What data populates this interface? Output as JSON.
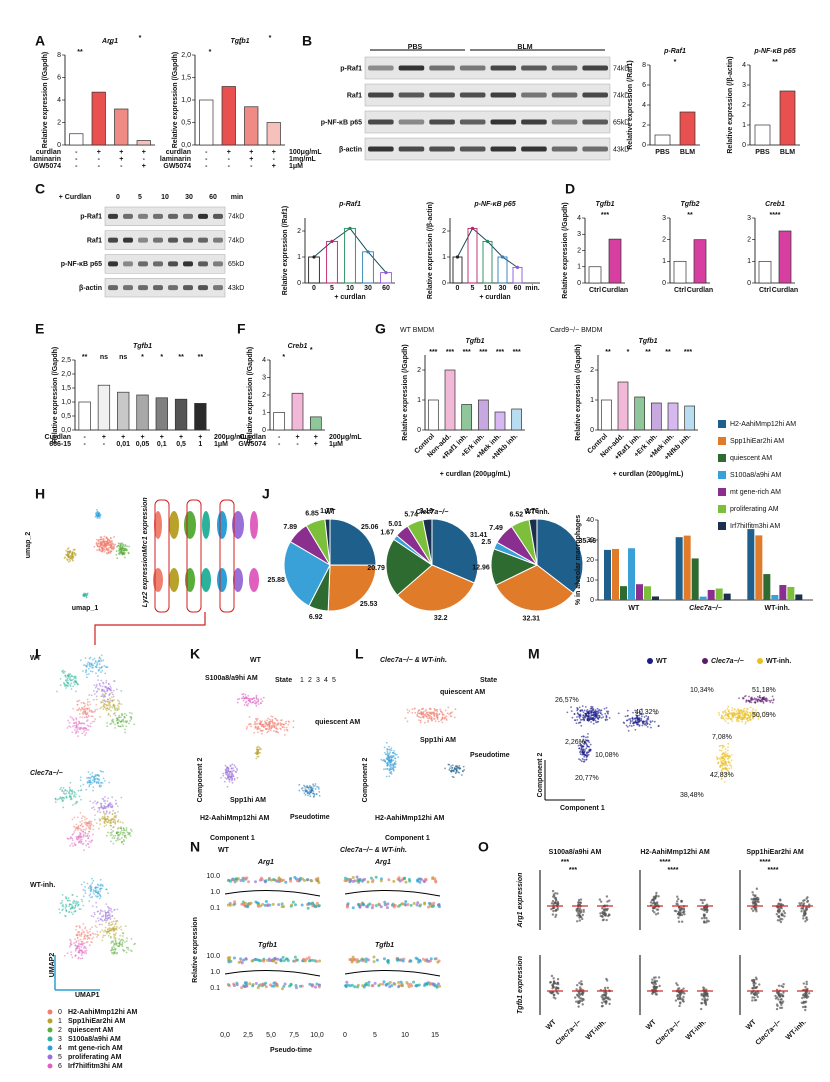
{
  "clusters": [
    {
      "name": "H2-AahiMmp12hi AM",
      "color": "#1f5f8b"
    },
    {
      "name": "Spp1hiEar2hi AM",
      "color": "#e07b2a"
    },
    {
      "name": "quiescent AM",
      "color": "#2e6b30"
    },
    {
      "name": "S100a8/a9hi AM",
      "color": "#3aa0d8"
    },
    {
      "name": "mt gene-rich AM",
      "color": "#8a2f8f"
    },
    {
      "name": "proliferating AM",
      "color": "#7bbf3a"
    },
    {
      "name": "Irf7hiIfitm3hi AM",
      "color": "#1b2f4f"
    }
  ],
  "panels": [
    {
      "label": "A",
      "charts": [
        {
          "type": "bar",
          "title": "Arg1",
          "ylabel": "Relative expression (/Gapdh)",
          "values": [
            1,
            4.7,
            3.2,
            0.4
          ],
          "colors": [
            "#ffffff",
            "#e8514f",
            "#f08a84",
            "#f6c1bd"
          ],
          "ylim": [
            0,
            8
          ],
          "yticks": [
            0,
            2,
            4,
            6,
            8
          ],
          "rows": [
            {
              "name": "curdlan",
              "marks": [
                "-",
                "+",
                "+",
                "+"
              ]
            },
            {
              "name": "laminarin",
              "marks": [
                "-",
                "-",
                "+",
                "-"
              ]
            },
            {
              "name": "GW5074",
              "marks": [
                "-",
                "-",
                "-",
                "+"
              ]
            }
          ],
          "sig": [
            "**",
            "*",
            "*"
          ]
        },
        {
          "type": "bar",
          "title": "Tgfb1",
          "ylabel": "Relative expression (/Gapdh)",
          "values": [
            1,
            1.3,
            0.85,
            0.5
          ],
          "colors": [
            "#ffffff",
            "#e8514f",
            "#f08a84",
            "#f6c1bd"
          ],
          "ylim": [
            0,
            2
          ],
          "yticks": [
            {
              "value": 0,
              "label": "0,0"
            },
            {
              "value": 0.5,
              "label": "0,5"
            },
            {
              "value": 1,
              "label": "1,0"
            },
            {
              "value": 1.5,
              "label": "1,5"
            },
            {
              "value": 2,
              "label": "2,0"
            }
          ],
          "rows": [
            {
              "name": "curdlan",
              "marks": [
                "-",
                "+",
                "+",
                "+"
              ]
            },
            {
              "name": "laminarin",
              "marks": [
                "-",
                "-",
                "+",
                "-"
              ]
            },
            {
              "name": "GW5074",
              "marks": [
                "-",
                "-",
                "-",
                "+"
              ]
            }
          ],
          "doses": [
            "100μg/mL",
            "1mg/mL",
            "1μM"
          ],
          "sig": [
            "*",
            "*",
            "*"
          ]
        }
      ]
    },
    {
      "label": "B",
      "blot": {
        "groups": [
          "PBS",
          "BLM"
        ],
        "rows": [
          "p-Raf1",
          "Raf1",
          "p-NF-κB p65",
          "β-actin"
        ],
        "sizes": [
          "74kD",
          "74kD",
          "65kD",
          "43kD"
        ]
      },
      "charts": [
        {
          "type": "bar",
          "title": "p-Raf1",
          "ylabel": "Relative expression (/Raf1)",
          "categories": [
            "PBS",
            "BLM"
          ],
          "values": [
            1,
            3.3
          ],
          "colors": [
            "#ffffff",
            "#e8514f"
          ],
          "ylim": [
            0,
            8
          ],
          "yticks": [
            0,
            2,
            4,
            6,
            8
          ],
          "sig": [
            "*"
          ]
        },
        {
          "type": "bar",
          "title": "p-NF-κB p65",
          "ylabel": "Relative expression (/β-actin)",
          "categories": [
            "PBS",
            "BLM"
          ],
          "values": [
            1,
            2.7
          ],
          "colors": [
            "#ffffff",
            "#e8514f"
          ],
          "ylim": [
            0,
            4
          ],
          "yticks": [
            0,
            1,
            2,
            3,
            4
          ],
          "sig": [
            "**"
          ]
        }
      ]
    },
    {
      "label": "C",
      "blot": {
        "groups": [
          "+ Curdlan",
          "0",
          "5",
          "10",
          "30",
          "60",
          "min"
        ],
        "rows": [
          "p-Raf1",
          "Raf1",
          "p-NF-κB p65",
          "β-actin"
        ],
        "sizes": [
          "74kD",
          "74kD",
          "65kD",
          "43kD"
        ]
      },
      "charts": [
        {
          "type": "line",
          "title": "p-Raf1",
          "ylabel": "Relative expression (/Raf1)",
          "xlabel": "+ curdlan",
          "categories": [
            "0",
            "5",
            "10",
            "30",
            "60"
          ],
          "values": [
            1,
            1.6,
            2.1,
            1.2,
            0.4
          ],
          "colors": [
            "#222222",
            "#c0206a",
            "#1f8a5a",
            "#2a7fb8",
            "#8a5ad8"
          ],
          "ylim": [
            0,
            2.5
          ],
          "yticks": [
            0,
            1,
            2
          ]
        },
        {
          "type": "line",
          "title": "p-NF-κB p65",
          "ylabel": "Relative expression (/β-actin)",
          "xlabel": "+ curdlan",
          "categories": [
            "0",
            "5",
            "10",
            "30",
            "60",
            "min."
          ],
          "values": [
            1,
            2.1,
            1.6,
            1.0,
            0.6,
            null
          ],
          "colors": [
            "#222222",
            "#c0206a",
            "#1f8a5a",
            "#2a7fb8",
            "#8a5ad8",
            "#8a5ad8"
          ],
          "ylim": [
            0,
            2.5
          ],
          "yticks": [
            0,
            1,
            2
          ]
        }
      ]
    },
    {
      "label": "D",
      "charts": [
        {
          "type": "bar",
          "title": "Tgfb1",
          "ylabel": "Relative expression (/Gapdh)",
          "categories": [
            "Ctrl",
            "Curdlan"
          ],
          "values": [
            1,
            2.7
          ],
          "colors": [
            "#ffffff",
            "#d63fa0"
          ],
          "ylim": [
            0,
            4
          ],
          "yticks": [
            0,
            1,
            2,
            3,
            4
          ],
          "sig": [
            "***"
          ]
        },
        {
          "type": "bar",
          "title": "Tgfb2",
          "categories": [
            "Ctrl",
            "Curdlan"
          ],
          "values": [
            1,
            2.0
          ],
          "colors": [
            "#ffffff",
            "#d63fa0"
          ],
          "ylim": [
            0,
            3
          ],
          "yticks": [
            0,
            1,
            2,
            3
          ],
          "sig": [
            "**"
          ]
        },
        {
          "type": "bar",
          "title": "Creb1",
          "categories": [
            "Ctrl",
            "Curdlan"
          ],
          "values": [
            1,
            2.4
          ],
          "colors": [
            "#ffffff",
            "#d63fa0"
          ],
          "ylim": [
            0,
            3
          ],
          "yticks": [
            0,
            1,
            2,
            3
          ],
          "sig": [
            "****"
          ]
        }
      ]
    },
    {
      "label": "E",
      "charts": [
        {
          "type": "bar",
          "title": "Tgfb1",
          "ylabel": "Relative expression (/Gapdh)",
          "values": [
            1,
            1.6,
            1.35,
            1.25,
            1.15,
            1.1,
            0.95
          ],
          "colors": [
            "#ffffff",
            "#f0f0f0",
            "#c8c8c8",
            "#a8a8a8",
            "#808080",
            "#555555",
            "#2a2a2a"
          ],
          "ylim": [
            0,
            2.5
          ],
          "yticks": [
            {
              "value": 0,
              "label": "0,0"
            },
            {
              "value": 0.5,
              "label": "0,5"
            },
            {
              "value": 1,
              "label": "1,0"
            },
            {
              "value": 1.5,
              "label": "1,5"
            },
            {
              "value": 2,
              "label": "2,0"
            },
            {
              "value": 2.5,
              "label": "2,5"
            }
          ],
          "rows": [
            {
              "name": "Curdlan",
              "marks": [
                "-",
                "+",
                "+",
                "+",
                "+",
                "+",
                "+"
              ]
            },
            {
              "name": "666-15",
              "marks": [
                "-",
                "-",
                "0,01",
                "0,05",
                "0,1",
                "0,5",
                "1"
              ]
            }
          ],
          "doses": [
            "200μg/mL",
            "1μM"
          ],
          "sig": [
            "**",
            "ns",
            "ns",
            "*",
            "*",
            "**",
            "**"
          ]
        }
      ]
    },
    {
      "label": "F",
      "charts": [
        {
          "type": "bar",
          "title": "Creb1",
          "ylabel": "Relative expression (/Gapdh)",
          "values": [
            1,
            2.1,
            0.75
          ],
          "colors": [
            "#ffffff",
            "#f2b8d8",
            "#8fc79a"
          ],
          "ylim": [
            0,
            4
          ],
          "yticks": [
            0,
            1,
            2,
            3,
            4
          ],
          "rows": [
            {
              "name": "Curdlan",
              "marks": [
                "-",
                "+",
                "+"
              ]
            },
            {
              "name": "GW5074",
              "marks": [
                "-",
                "-",
                "+"
              ]
            }
          ],
          "doses": [
            "200μg/mL",
            "1μM"
          ],
          "sig": [
            "*",
            "*"
          ]
        }
      ]
    },
    {
      "label": "G",
      "headers": [
        "WT BMDM",
        "Card9−/− BMDM"
      ],
      "charts": [
        {
          "type": "bar",
          "title": "Tgfb1",
          "ylabel": "Relative expression (/Gapdh)",
          "xlabel": "+ curdlan (200μg/mL)",
          "categories": [
            "Control",
            "Non-add.",
            "+Raf1 inh.",
            "+Erk inh.",
            "+Mek inh.",
            "+Nfkb inh."
          ],
          "values": [
            1,
            2,
            0.85,
            1,
            0.6,
            0.7
          ],
          "colors": [
            "#ffffff",
            "#f2b8d8",
            "#8fc79a",
            "#c7a8e0",
            "#d8b8f0",
            "#b8dcf0"
          ],
          "ylim": [
            0,
            2.5
          ],
          "yticks": [
            0,
            1,
            2
          ],
          "sig": [
            "***",
            "***",
            "***",
            "***",
            "***",
            "***"
          ]
        },
        {
          "type": "bar",
          "title": "Tgfb1",
          "ylabel": "Relative expression (/Gapdh)",
          "xlabel": "+ curdlan (200μg/mL)",
          "categories": [
            "Control",
            "Non-add.",
            "+Raf1 inh.",
            "+Erk inh.",
            "+Mek inh.",
            "+Nfkb inh."
          ],
          "values": [
            1,
            1.6,
            1.1,
            0.9,
            0.9,
            0.8
          ],
          "colors": [
            "#ffffff",
            "#f2b8d8",
            "#8fc79a",
            "#c7a8e0",
            "#d8b8f0",
            "#b8dcf0"
          ],
          "ylim": [
            0,
            2.5
          ],
          "yticks": [
            0,
            1,
            2
          ],
          "sig": [
            "**",
            "*",
            "**",
            "**",
            "***"
          ]
        }
      ]
    },
    {
      "label": "H",
      "texts": [
        "umap_1",
        "umap_2",
        "Mrc1 expression",
        "Lyz2 expression"
      ]
    },
    {
      "label": "J",
      "pies": [
        {
          "title": "WT",
          "values": [
            25.06,
            25.53,
            6.92,
            25.88,
            7.89,
            6.85,
            1.77
          ]
        },
        {
          "title": "Clec7a−/−",
          "values": [
            31.41,
            32.2,
            20.79,
            1.67,
            5.01,
            5.74,
            3.19
          ]
        },
        {
          "title": "WT-inh.",
          "values": [
            35.46,
            32.31,
            12.96,
            2.5,
            7.49,
            6.52,
            2.76
          ]
        }
      ],
      "bar": {
        "ylabel": "% in alveolar macrophages",
        "ylim": [
          0,
          40
        ],
        "yticks": [
          0,
          10,
          20,
          30,
          40
        ]
      }
    },
    {
      "label": "I",
      "texts": [
        "WT",
        "Clec7a−/−",
        "WT-inh.",
        "UMAP1",
        "UMAP2"
      ],
      "ids": [
        "0",
        "1",
        "2",
        "3",
        "4",
        "5",
        "6"
      ],
      "umap_colors": [
        "#f07f6f",
        "#b8a22a",
        "#5aad3a",
        "#2ab39a",
        "#2a9fd8",
        "#9b6fd8",
        "#e060c0"
      ]
    },
    {
      "label": "K",
      "texts": [
        "WT",
        "S100a8/a9hi AM",
        "State",
        "quiescent AM",
        "Spp1hi AM",
        "H2-AahiMmp12hi AM",
        "Pseudotime",
        "Component 1",
        "Component 2"
      ],
      "states": [
        "1",
        "2",
        "3",
        "4",
        "5"
      ]
    },
    {
      "label": "L",
      "texts": [
        "Clec7a−/− & WT-inh.",
        "quiescent AM",
        "Spp1hi AM",
        "H2-AahiMmp12hi AM",
        "Pseudotime",
        "State",
        "Component 1",
        "Component 2"
      ]
    },
    {
      "label": "M",
      "legend": [
        "WT",
        "Clec7a−/−",
        "WT-inh."
      ],
      "wt": [
        "26,57%",
        "40,32%",
        "2,26%",
        "10,08%",
        "20,77%"
      ],
      "inh": [
        "10,34%",
        "51,18%",
        "7,08%",
        "50,09%",
        "42,83%",
        "38,48%"
      ],
      "axes": [
        "Component 1",
        "Component 2"
      ]
    },
    {
      "label": "N",
      "texts": [
        "WT",
        "Clec7a−/− & WT-inh.",
        "Arg1",
        "Arg1",
        "Tgfb1",
        "Tgfb1",
        "Relative expression",
        "Pseudo-time"
      ],
      "yticks": [
        "10.0",
        "1.0",
        "0.1"
      ],
      "xticks_wt": [
        "0,0",
        "2,5",
        "5,0",
        "7,5",
        "10,0"
      ],
      "xticks_ko": [
        "0",
        "5",
        "10",
        "15"
      ]
    },
    {
      "label": "O",
      "titles": [
        "S100a8/a9hi AM",
        "H2-AahiMmp12hi AM",
        "Spp1hiEar2hi AM"
      ],
      "ylabels": [
        "Arg1 expression",
        "Tgfb1 expression"
      ],
      "categories": [
        "WT",
        "Clec7a−/−",
        "WT-inh."
      ],
      "sig": [
        "***",
        "***",
        "****",
        "****",
        "****",
        "****"
      ]
    }
  ]
}
